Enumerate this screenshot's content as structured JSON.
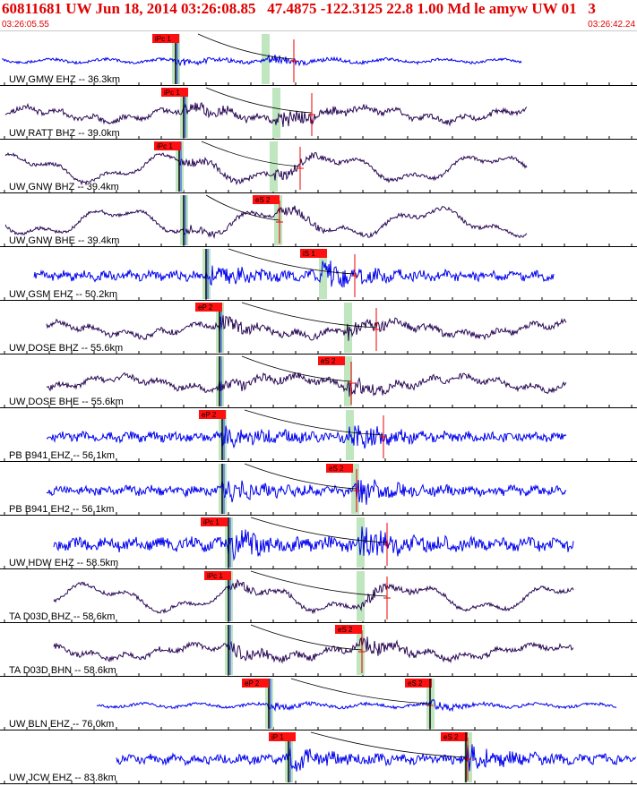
{
  "header": {
    "title": "60811681 UW Jun 18, 2014 03:26:08.85   47.4875 -122.3125 22.8 1.00 Md le amyw UW 01   3",
    "start_time": "03:26:05.55",
    "end_time": "03:26:42.24"
  },
  "colors": {
    "header_text": "#e00000",
    "trace_ehz": "#0000ee",
    "trace_bh": "#2a0a55",
    "pick_box": "#ff1010",
    "pick_window": "#bfe6bf",
    "marker": "#ee0000",
    "moveout_curve": "#000000"
  },
  "traces": [
    {
      "label": "UW GMW EHZ -- 36.3km",
      "pick_label": "iPc 1",
      "color": "trace_ehz",
      "type": "quiet",
      "seed": 11
    },
    {
      "label": "UW RATT BHZ -- 39.0km",
      "pick_label": "iPc 1",
      "color": "trace_bh",
      "type": "busy",
      "seed": 23
    },
    {
      "label": "UW GNW BHZ -- 39.4km",
      "pick_label": "iPc 1",
      "color": "trace_bh",
      "type": "wave",
      "seed": 37
    },
    {
      "label": "UW GNW BHE -- 39.4km",
      "pick_label": "eS 2",
      "color": "trace_bh",
      "type": "wave",
      "seed": 41
    },
    {
      "label": "UW GSM EHZ -- 50.2km",
      "pick_label": "iS 1",
      "color": "trace_ehz",
      "type": "noisy",
      "seed": 53
    },
    {
      "label": "UW DOSE BHZ -- 55.6km",
      "pick_label": "eP 2",
      "color": "trace_bh",
      "type": "busy",
      "seed": 61
    },
    {
      "label": "UW DOSE BHE -- 55.6km",
      "pick_label": "eS 2",
      "color": "trace_bh",
      "type": "busy",
      "seed": 71
    },
    {
      "label": "PB B941 EHZ -- 56.1km",
      "pick_label": "eP 2",
      "color": "trace_ehz",
      "type": "noisy",
      "seed": 83
    },
    {
      "label": "PB B941 EH2 -- 56.1km",
      "pick_label": "eS 2",
      "color": "trace_ehz",
      "type": "noisy",
      "seed": 97
    },
    {
      "label": "UW HDW EHZ -- 58.5km",
      "pick_label": "iPc 1",
      "color": "trace_ehz",
      "type": "strong",
      "seed": 101
    },
    {
      "label": "TA D03D BHZ -- 58.6km",
      "pick_label": "iPc 1",
      "color": "trace_bh",
      "type": "wave",
      "seed": 113
    },
    {
      "label": "TA D03D BHN -- 58.6km",
      "pick_label": "eS 2",
      "color": "trace_bh",
      "type": "busy",
      "seed": 127
    },
    {
      "label": "UW BLN EHZ -- 76.0km",
      "pick_label": "eP 2",
      "pick_label_2": "eS 2",
      "color": "trace_ehz",
      "type": "quiet",
      "seed": 131
    },
    {
      "label": "UW JCW EHZ -- 83.8km",
      "pick_label": "iP 1",
      "pick_label_2": "eS 2",
      "color": "trace_ehz",
      "type": "noisy",
      "seed": 139
    }
  ]
}
